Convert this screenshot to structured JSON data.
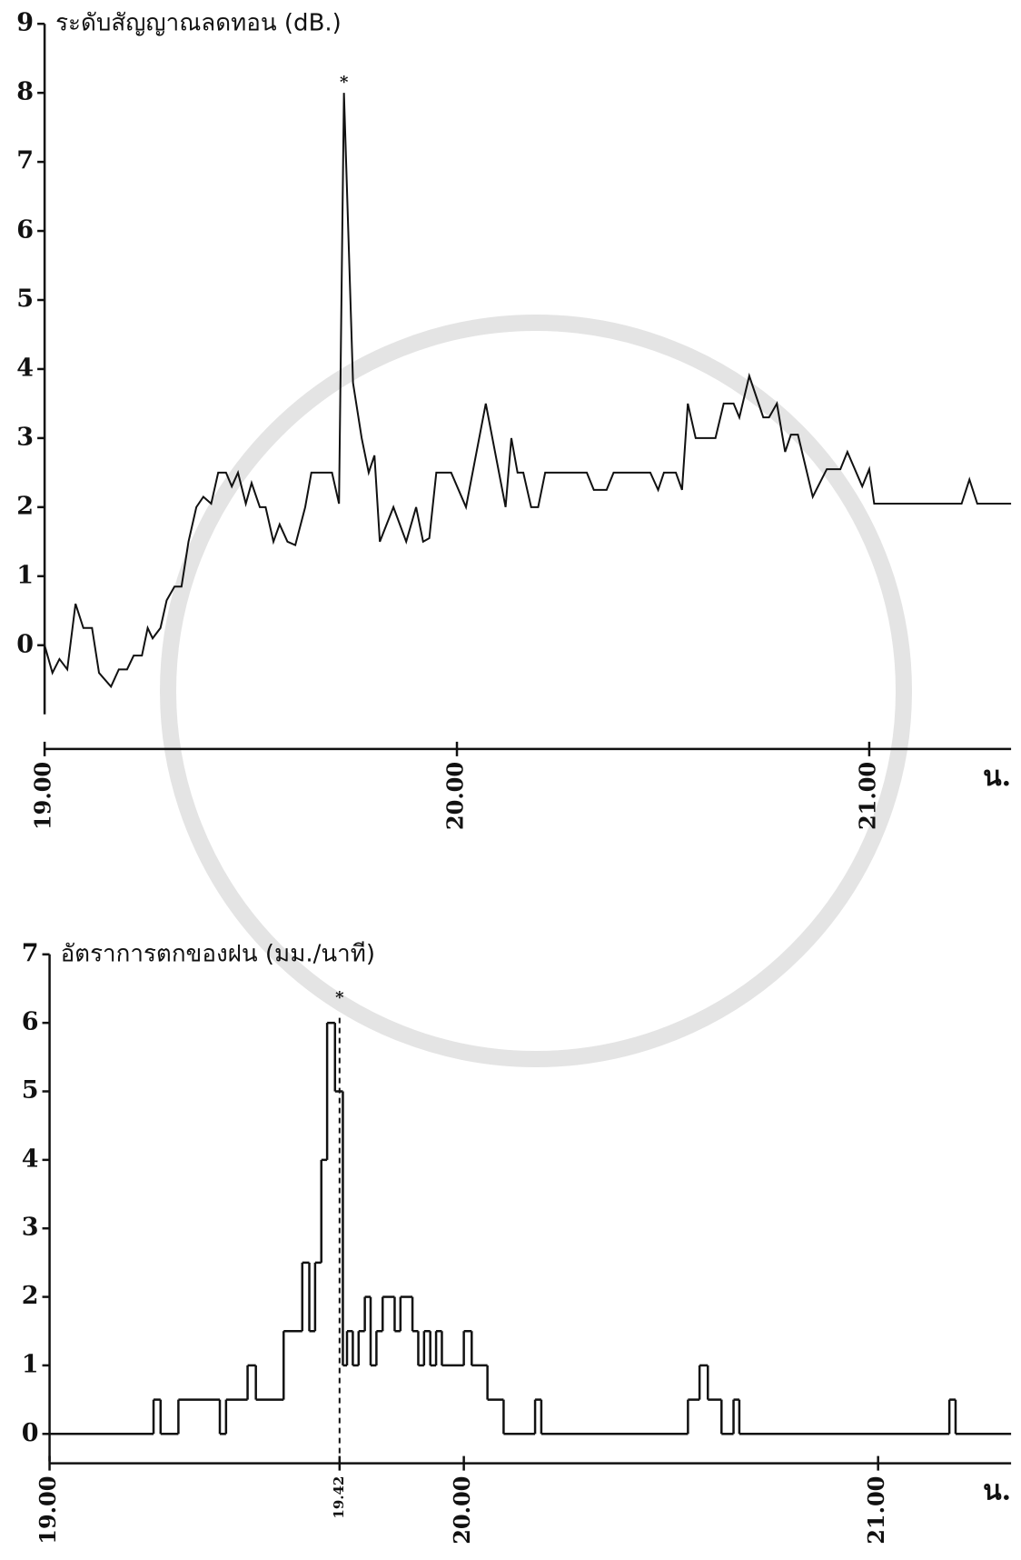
{
  "chart_data": [
    {
      "type": "line",
      "y_label": "ระดับสัญญาณลดทอน (dB.)",
      "x_label": "น.",
      "peak_marker": "*",
      "xlim": [
        19,
        21.344
      ],
      "ylim": [
        -1,
        9
      ],
      "xticks": [
        {
          "value": 19,
          "label": "19.00"
        },
        {
          "value": 20,
          "label": "20.00"
        },
        {
          "value": 21,
          "label": "21.00"
        }
      ],
      "yticks": [
        0,
        1,
        2,
        3,
        4,
        5,
        6,
        7,
        8,
        9
      ],
      "color": "#111111",
      "x": [
        19.0,
        19.019,
        19.036,
        19.055,
        19.075,
        19.094,
        19.115,
        19.132,
        19.161,
        19.18,
        19.2,
        19.216,
        19.236,
        19.25,
        19.262,
        19.281,
        19.296,
        19.315,
        19.332,
        19.349,
        19.368,
        19.385,
        19.404,
        19.421,
        19.44,
        19.454,
        19.469,
        19.488,
        19.502,
        19.522,
        19.536,
        19.555,
        19.57,
        19.589,
        19.608,
        19.632,
        19.647,
        19.697,
        19.714,
        19.726,
        19.748,
        19.769,
        19.786,
        19.8,
        19.813,
        19.846,
        19.877,
        19.901,
        19.918,
        19.933,
        19.95,
        19.986,
        20.022,
        20.07,
        20.118,
        20.132,
        20.147,
        20.161,
        20.18,
        20.197,
        20.214,
        20.315,
        20.332,
        20.363,
        20.38,
        20.469,
        20.488,
        20.502,
        20.531,
        20.546,
        20.56,
        20.579,
        20.627,
        20.647,
        20.671,
        20.685,
        20.709,
        20.743,
        20.757,
        20.776,
        20.796,
        20.81,
        20.827,
        20.863,
        20.897,
        20.93,
        20.947,
        20.983,
        21.0,
        21.012,
        21.224,
        21.243,
        21.262,
        21.344
      ],
      "values": [
        0,
        -0.4,
        -0.2,
        -0.35,
        0.6,
        0.25,
        0.25,
        -0.4,
        -0.6,
        -0.35,
        -0.35,
        -0.15,
        -0.15,
        0.25,
        0.1,
        0.25,
        0.65,
        0.85,
        0.85,
        1.5,
        2.0,
        2.15,
        2.05,
        2.5,
        2.5,
        2.3,
        2.5,
        2.05,
        2.35,
        2.0,
        2.0,
        1.5,
        1.75,
        1.5,
        1.45,
        2.0,
        2.5,
        2.5,
        2.05,
        8.0,
        3.8,
        3.0,
        2.5,
        2.75,
        1.5,
        2.0,
        1.5,
        2.0,
        1.5,
        1.55,
        2.5,
        2.5,
        2.0,
        3.5,
        2.0,
        3.0,
        2.5,
        2.5,
        2.0,
        2.0,
        2.5,
        2.5,
        2.25,
        2.25,
        2.5,
        2.5,
        2.25,
        2.5,
        2.5,
        2.25,
        3.5,
        3.0,
        3.0,
        3.5,
        3.5,
        3.3,
        3.9,
        3.3,
        3.3,
        3.5,
        2.8,
        3.05,
        3.05,
        2.15,
        2.55,
        2.55,
        2.8,
        2.3,
        2.55,
        2.05,
        2.05,
        2.4,
        2.05,
        2.05
      ]
    },
    {
      "type": "step",
      "y_label": "อัตราการตกของฝน (มม./นาที)",
      "x_label": "น.",
      "peak_marker": "*",
      "xlim": [
        19,
        21.321
      ],
      "ylim": [
        -0.4,
        7
      ],
      "xticks": [
        {
          "value": 19,
          "label": "19.00"
        },
        {
          "value": 19.7,
          "label": "19.42"
        },
        {
          "value": 20,
          "label": "20.00"
        },
        {
          "value": 21,
          "label": "21.00"
        }
      ],
      "yticks": [
        0,
        1,
        2,
        3,
        4,
        5,
        6,
        7
      ],
      "color": "#111111",
      "x": [
        19.0,
        19.251,
        19.268,
        19.311,
        19.411,
        19.426,
        19.478,
        19.498,
        19.565,
        19.61,
        19.627,
        19.641,
        19.656,
        19.67,
        19.689,
        19.708,
        19.718,
        19.732,
        19.746,
        19.761,
        19.775,
        19.789,
        19.804,
        19.833,
        19.847,
        19.876,
        19.89,
        19.904,
        19.919,
        19.933,
        19.947,
        20.0,
        20.019,
        20.057,
        20.096,
        20.172,
        20.187,
        20.541,
        20.569,
        20.589,
        20.622,
        20.651,
        20.665,
        21.172,
        21.187
      ],
      "values": [
        0,
        0.5,
        0,
        0.5,
        0,
        0.5,
        1.0,
        0.5,
        1.5,
        2.5,
        1.5,
        2.5,
        4.0,
        6.0,
        5.0,
        1.0,
        1.5,
        1.0,
        1.5,
        2.0,
        1.0,
        1.5,
        2.0,
        1.5,
        2.0,
        1.5,
        1.0,
        1.5,
        1.0,
        1.5,
        1.0,
        1.5,
        1.0,
        0.5,
        0,
        0.5,
        0,
        0.5,
        1.0,
        0.5,
        0,
        0.5,
        0,
        0.5,
        0
      ]
    }
  ]
}
